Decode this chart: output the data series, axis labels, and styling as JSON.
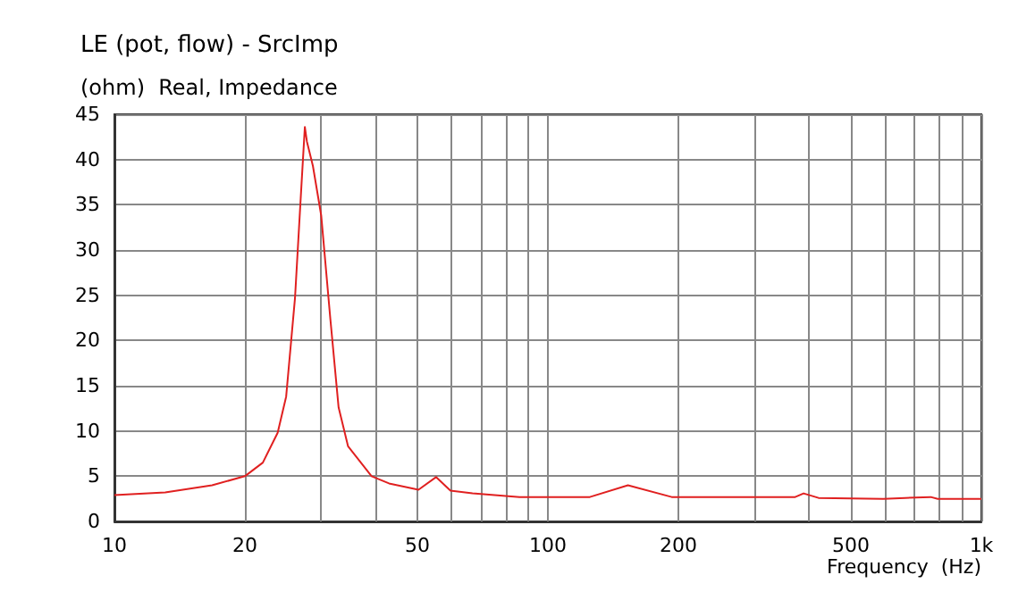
{
  "chart_data": {
    "type": "line",
    "title": "LE (pot, flow) - SrcImp",
    "subtitle": "(ohm)  Real, Impedance",
    "xlabel": "Frequency  (Hz)",
    "log": "x",
    "grid": true,
    "marker": "none",
    "line_style": "solid",
    "xlim": [
      10,
      1000
    ],
    "ylim": [
      0,
      45
    ],
    "xticks": [
      10,
      20,
      {
        "value": 30,
        "label": null
      },
      {
        "value": 40,
        "label": null
      },
      50,
      {
        "value": 60,
        "label": null
      },
      {
        "value": 70,
        "label": null
      },
      {
        "value": 80,
        "label": null
      },
      {
        "value": 90,
        "label": null
      },
      100,
      200,
      {
        "value": 300,
        "label": null
      },
      {
        "value": 400,
        "label": null
      },
      500,
      {
        "value": 600,
        "label": null
      },
      {
        "value": 700,
        "label": null
      },
      {
        "value": 800,
        "label": null
      },
      {
        "value": 900,
        "label": null
      },
      {
        "value": 1000,
        "label": "1k"
      }
    ],
    "yticks": [
      0,
      5,
      10,
      15,
      20,
      25,
      30,
      35,
      40,
      45
    ],
    "series": [
      {
        "color": "#e02020",
        "x": [
          10,
          13.1,
          16.8,
          20,
          22,
          23.8,
          24.9,
          26.1,
          26.9,
          27.5,
          27.8,
          28.7,
          30,
          31.5,
          32.9,
          34.6,
          39.2,
          43,
          50.3,
          55.2,
          59.6,
          67,
          86,
          125,
          153,
          193,
          372,
          389,
          421,
          594,
          667,
          764,
          793,
          1000
        ],
        "values": [
          2.9,
          3.2,
          4.0,
          5.0,
          6.5,
          9.8,
          13.8,
          24.7,
          35.7,
          43.6,
          42.0,
          39.3,
          33.8,
          22.3,
          12.6,
          8.3,
          5.0,
          4.2,
          3.5,
          4.9,
          3.4,
          3.1,
          2.7,
          2.7,
          4.0,
          2.7,
          2.7,
          3.1,
          2.6,
          2.5,
          2.6,
          2.7,
          2.5,
          2.5
        ]
      }
    ]
  }
}
